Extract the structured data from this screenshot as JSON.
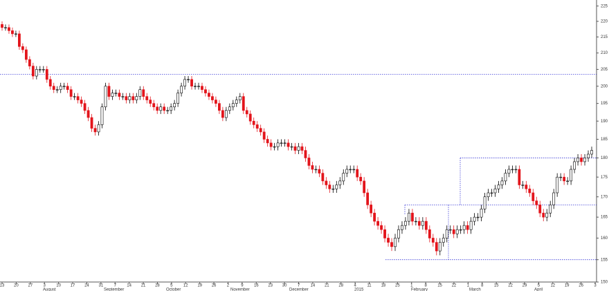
{
  "chart_data": {
    "type": "candlestick",
    "ylim": [
      150,
      227
    ],
    "log_scale": true,
    "yticks": [
      150,
      155,
      160,
      165,
      170,
      175,
      180,
      185,
      190,
      195,
      200,
      205,
      210,
      215,
      220,
      225
    ],
    "up_color": "#ffffff",
    "down_color": "#e3141b",
    "edge_color": "#000000",
    "level_color": "#3b3bd8",
    "reference_levels": [
      203.5,
      180,
      168,
      155
    ],
    "week_labels": [
      "13",
      "20",
      "27",
      "3",
      "10",
      "17",
      "24",
      "31",
      "7",
      "14",
      "21",
      "28",
      "5",
      "12",
      "19",
      "26",
      "2",
      "9",
      "16",
      "23",
      "30",
      "7",
      "14",
      "21",
      "28",
      "4",
      "11",
      "18",
      "25",
      "1",
      "8",
      "15",
      "22",
      "1",
      "8",
      "15",
      "22",
      "29",
      "5",
      "12",
      "19",
      "26",
      "3"
    ],
    "month_labels": [
      "August",
      "September",
      "October",
      "November",
      "December",
      "2015",
      "February",
      "March",
      "April"
    ],
    "open": [
      219,
      218,
      218,
      217,
      216,
      216,
      212,
      211,
      208,
      206,
      203,
      205,
      205,
      205,
      202,
      200,
      199,
      199,
      200,
      200,
      199,
      197,
      197,
      196,
      195,
      193,
      191,
      188,
      187,
      189,
      194,
      200,
      197,
      198,
      198,
      197,
      197,
      196,
      197,
      196,
      197,
      199,
      197,
      196,
      195,
      194,
      193,
      194,
      193,
      193,
      194,
      195,
      198,
      200,
      202,
      202,
      200,
      200,
      200,
      199,
      198,
      197,
      196,
      195,
      193,
      191,
      193,
      194,
      195,
      196,
      197,
      193,
      192,
      190,
      189,
      188,
      187,
      185,
      184,
      183,
      183,
      184,
      184,
      184,
      183,
      183,
      182,
      183,
      182,
      180,
      178,
      177,
      177,
      176,
      174,
      173,
      172,
      172,
      173,
      174,
      176,
      177,
      177,
      177,
      175,
      174,
      171,
      168,
      166,
      164,
      163,
      162,
      160,
      159,
      158,
      160,
      162,
      163,
      164,
      166,
      164,
      164,
      163,
      164,
      162,
      160,
      159,
      157,
      159,
      160,
      162,
      162,
      161,
      162,
      162,
      163,
      162,
      164,
      165,
      165,
      167,
      170,
      171,
      171,
      172,
      173,
      174,
      176,
      177,
      177,
      177,
      173,
      173,
      172,
      171,
      169,
      168,
      166,
      165,
      166,
      168,
      171,
      175,
      175,
      174,
      174,
      177,
      179,
      180,
      179,
      180,
      181
    ],
    "high": [
      220,
      219,
      219,
      218,
      217,
      217,
      213,
      212,
      209,
      207,
      206,
      206,
      206,
      206,
      203,
      201,
      200,
      201,
      201,
      201,
      200,
      198,
      198,
      197,
      196,
      194,
      192,
      189,
      190,
      195,
      201,
      201,
      199,
      199,
      199,
      198,
      198,
      198,
      198,
      198,
      200,
      200,
      198,
      197,
      196,
      195,
      195,
      195,
      194,
      195,
      196,
      199,
      201,
      203,
      203,
      203,
      201,
      201,
      201,
      200,
      199,
      198,
      197,
      196,
      194,
      194,
      195,
      196,
      197,
      198,
      198,
      194,
      193,
      191,
      190,
      189,
      188,
      186,
      185,
      184,
      185,
      185,
      185,
      185,
      184,
      184,
      184,
      184,
      183,
      181,
      179,
      178,
      178,
      177,
      175,
      174,
      173,
      174,
      175,
      177,
      178,
      178,
      178,
      178,
      176,
      175,
      172,
      169,
      167,
      165,
      164,
      163,
      161,
      160,
      161,
      163,
      164,
      165,
      167,
      167,
      165,
      165,
      165,
      165,
      163,
      161,
      160,
      160,
      161,
      163,
      163,
      163,
      163,
      163,
      164,
      164,
      165,
      166,
      166,
      168,
      171,
      172,
      172,
      173,
      174,
      175,
      177,
      178,
      178,
      178,
      178,
      174,
      174,
      173,
      172,
      170,
      169,
      167,
      167,
      169,
      172,
      176,
      176,
      176,
      175,
      178,
      180,
      181,
      181,
      181,
      182,
      183
    ],
    "low": [
      217,
      217,
      216,
      215,
      215,
      211,
      210,
      207,
      205,
      202,
      202,
      204,
      204,
      201,
      199,
      198,
      198,
      198,
      199,
      198,
      196,
      196,
      195,
      194,
      192,
      190,
      187,
      186,
      186,
      188,
      193,
      196,
      196,
      197,
      196,
      196,
      195,
      195,
      195,
      195,
      196,
      196,
      195,
      194,
      193,
      192,
      192,
      192,
      192,
      192,
      193,
      194,
      197,
      199,
      201,
      199,
      199,
      199,
      198,
      197,
      196,
      195,
      194,
      192,
      190,
      190,
      192,
      193,
      194,
      195,
      192,
      191,
      189,
      188,
      187,
      186,
      184,
      183,
      182,
      182,
      182,
      183,
      183,
      182,
      182,
      181,
      181,
      181,
      179,
      177,
      176,
      176,
      175,
      173,
      172,
      171,
      171,
      171,
      172,
      173,
      175,
      176,
      176,
      174,
      173,
      170,
      167,
      165,
      163,
      162,
      161,
      159,
      158,
      157,
      157,
      159,
      161,
      162,
      163,
      163,
      163,
      162,
      162,
      161,
      159,
      158,
      156,
      156,
      158,
      159,
      161,
      160,
      160,
      161,
      161,
      161,
      161,
      163,
      164,
      164,
      166,
      169,
      170,
      170,
      171,
      172,
      173,
      175,
      176,
      176,
      172,
      172,
      171,
      170,
      168,
      167,
      165,
      164,
      164,
      165,
      167,
      170,
      174,
      173,
      173,
      173,
      176,
      178,
      178,
      178,
      179,
      180
    ],
    "close": [
      218,
      218,
      217,
      216,
      216,
      212,
      211,
      208,
      206,
      203,
      205,
      205,
      205,
      202,
      200,
      199,
      199,
      200,
      200,
      199,
      197,
      197,
      196,
      195,
      193,
      191,
      188,
      187,
      189,
      194,
      200,
      197,
      198,
      198,
      197,
      197,
      196,
      197,
      196,
      197,
      199,
      197,
      196,
      195,
      194,
      193,
      194,
      193,
      193,
      194,
      195,
      198,
      200,
      202,
      202,
      200,
      200,
      200,
      199,
      198,
      197,
      196,
      195,
      193,
      191,
      193,
      194,
      195,
      196,
      197,
      193,
      192,
      190,
      189,
      188,
      187,
      185,
      184,
      183,
      183,
      184,
      184,
      184,
      183,
      183,
      182,
      183,
      182,
      180,
      178,
      177,
      177,
      176,
      174,
      173,
      172,
      172,
      173,
      174,
      176,
      177,
      177,
      177,
      175,
      174,
      171,
      168,
      166,
      164,
      163,
      162,
      160,
      159,
      158,
      160,
      162,
      163,
      164,
      166,
      164,
      164,
      163,
      164,
      162,
      160,
      159,
      157,
      159,
      160,
      162,
      162,
      161,
      162,
      162,
      163,
      162,
      164,
      165,
      165,
      167,
      170,
      171,
      171,
      172,
      173,
      174,
      176,
      177,
      177,
      177,
      173,
      173,
      172,
      171,
      169,
      168,
      166,
      165,
      166,
      168,
      171,
      175,
      175,
      174,
      174,
      177,
      179,
      180,
      179,
      180,
      181,
      182
    ]
  }
}
